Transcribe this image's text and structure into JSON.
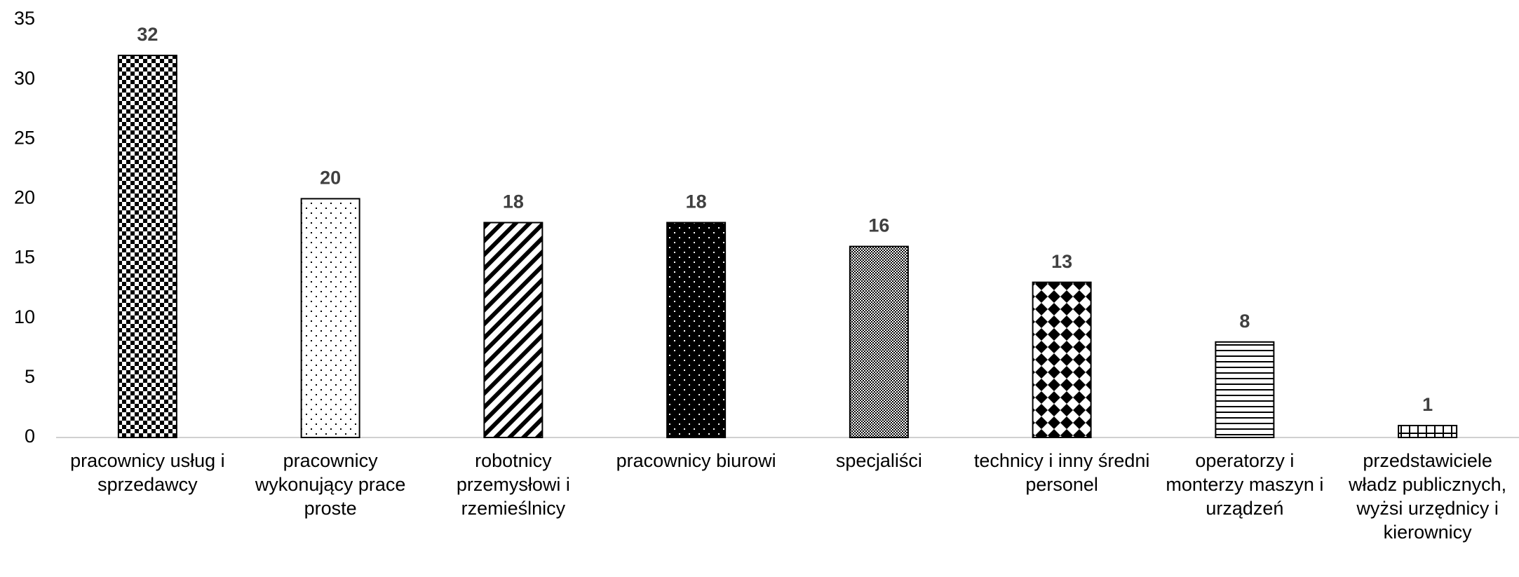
{
  "chart_data": {
    "type": "bar",
    "categories": [
      "pracownicy usług i sprzedawcy",
      "pracownicy wykonujący prace proste",
      "robotnicy przemysłowi i rzemieślnicy",
      "pracownicy biurowi",
      "specjaliści",
      "technicy i inny średni personel",
      "operatorzy i monterzy maszyn i urządzeń",
      "przedstawiciele władz publicznych, wyżsi urzędnicy i kierownicy"
    ],
    "values": [
      32,
      20,
      18,
      18,
      16,
      13,
      8,
      1
    ],
    "patterns": [
      "checker",
      "sparse-dots",
      "diagonal",
      "dots-on-black",
      "fine-checker",
      "diamonds",
      "horizontal",
      "grid"
    ],
    "color": "#000000",
    "ylim": [
      0,
      35
    ],
    "yticks": [
      0,
      5,
      10,
      15,
      20,
      25,
      30,
      35
    ],
    "grid": false
  }
}
